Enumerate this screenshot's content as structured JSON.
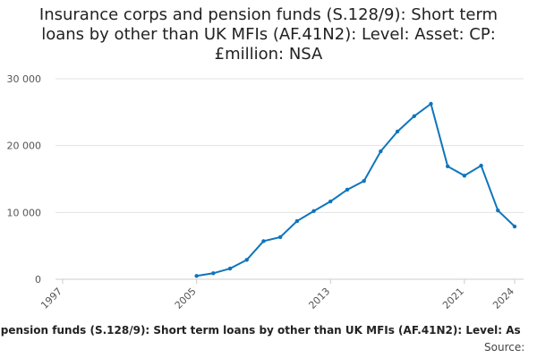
{
  "chart_data": {
    "type": "line",
    "title": "Insurance corps and pension funds (S.128/9): Short term loans by other than UK MFIs (AF.41N2): Level: Asset: CP: £million: NSA",
    "caption": "d pension funds (S.128/9): Short term loans by other than UK MFIs (AF.41N2): Level: As",
    "source": "Source:",
    "x": [
      2005,
      2006,
      2007,
      2008,
      2009,
      2010,
      2011,
      2012,
      2013,
      2014,
      2015,
      2016,
      2017,
      2018,
      2019,
      2020,
      2021,
      2022,
      2023,
      2024
    ],
    "series": [
      {
        "name": "Insurance corps and pension funds",
        "color": "#0f75bc",
        "values": [
          500,
          900,
          1600,
          2900,
          5700,
          6300,
          8700,
          10200,
          11650,
          13400,
          14700,
          19150,
          22100,
          24400,
          26250,
          16900,
          15500,
          17000,
          10300,
          7900
        ]
      }
    ],
    "xlim": [
      1997,
      2024
    ],
    "xticks": [
      1997,
      2005,
      2013,
      2021,
      2024
    ],
    "ylim": [
      0,
      30000
    ],
    "yticks": [
      0,
      {
        "value": 10000,
        "label": "10 000"
      },
      {
        "value": 20000,
        "label": "20 000"
      },
      {
        "value": 30000,
        "label": "30 000"
      }
    ],
    "grid": true
  }
}
